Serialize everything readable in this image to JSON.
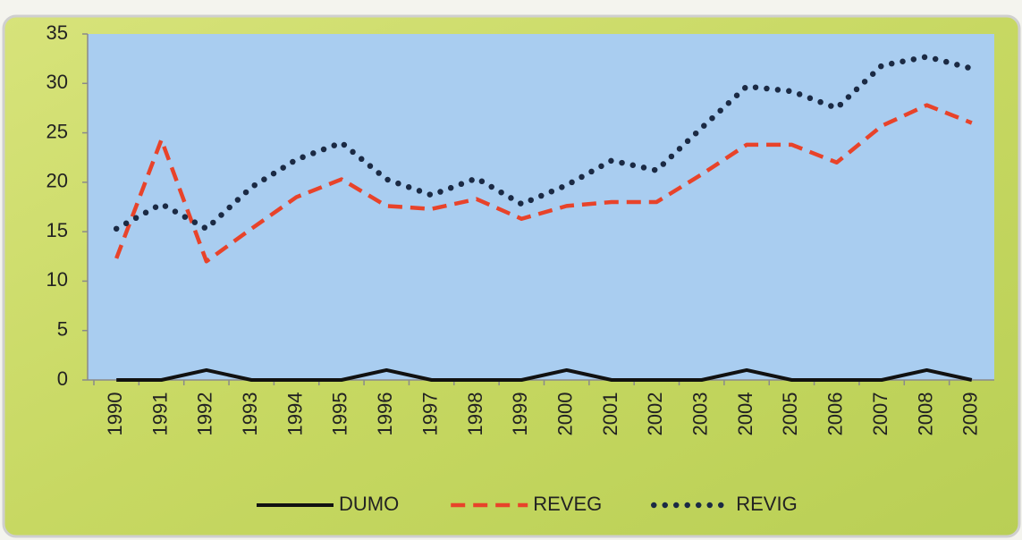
{
  "chart_data": {
    "type": "line",
    "categories": [
      "1990",
      "1991",
      "1992",
      "1993",
      "1994",
      "1995",
      "1996",
      "1997",
      "1998",
      "1999",
      "2000",
      "2001",
      "2002",
      "2003",
      "2004",
      "2005",
      "2006",
      "2007",
      "2008",
      "2009"
    ],
    "series": [
      {
        "name": "DUMO",
        "color": "#111111",
        "style": "solid",
        "values": [
          0,
          0,
          1,
          0,
          0,
          0,
          1,
          0,
          0,
          0,
          1,
          0,
          0,
          0,
          1,
          0,
          0,
          0,
          1,
          0
        ]
      },
      {
        "name": "REVEG",
        "color": "#e8432a",
        "style": "dashed",
        "values": [
          12.3,
          24.3,
          12,
          15.3,
          18.5,
          20.3,
          17.6,
          17.3,
          18.3,
          16.3,
          17.6,
          18,
          18,
          20.8,
          23.8,
          23.8,
          22,
          25.7,
          27.8,
          26
        ]
      },
      {
        "name": "REVIG",
        "color": "#1b2a44",
        "style": "dotted",
        "values": [
          15.3,
          17.8,
          15.3,
          19.5,
          22.3,
          24,
          20.3,
          18.7,
          20.4,
          17.8,
          19.7,
          22.2,
          21.2,
          25.5,
          29.7,
          29.2,
          27.5,
          31.8,
          32.7,
          31.5
        ]
      }
    ],
    "ylim": [
      0,
      35
    ],
    "yticks": [
      0,
      5,
      10,
      15,
      20,
      25,
      30,
      35
    ],
    "grid": false,
    "legend": "bottom"
  }
}
